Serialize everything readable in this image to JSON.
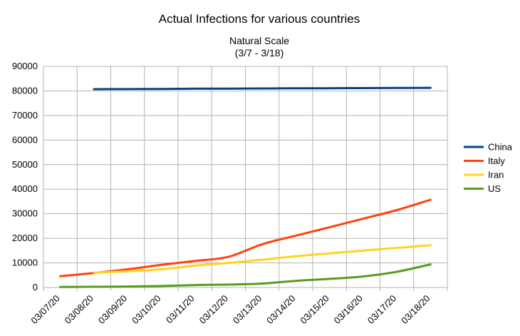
{
  "chart_data": {
    "type": "line",
    "title": "Actual Infections for various countries",
    "subtitle_line1": "Natural Scale",
    "subtitle_line2": "(3/7 - 3/18)",
    "xlabel": "",
    "ylabel": "",
    "ylim": [
      0,
      90000
    ],
    "yticks": [
      0,
      10000,
      20000,
      30000,
      40000,
      50000,
      60000,
      70000,
      80000,
      90000
    ],
    "ytick_labels": [
      "0",
      "10000",
      "20000",
      "30000",
      "40000",
      "50000",
      "60000",
      "70000",
      "80000",
      "90000"
    ],
    "categories": [
      "03/07/20",
      "03/08/20",
      "03/09/20",
      "03/10/20",
      "03/11/20",
      "03/12/20",
      "03/13/20",
      "03/14/20",
      "03/15/20",
      "03/16/20",
      "03/17/20",
      "03/18/20"
    ],
    "grid": true,
    "legend_position": "right",
    "series": [
      {
        "name": "China",
        "color": "#004586",
        "values": [
          null,
          80700,
          80750,
          80800,
          80900,
          80950,
          81000,
          81050,
          81100,
          81150,
          81200,
          81250
        ]
      },
      {
        "name": "Italy",
        "color": "#ff420e",
        "values": [
          4600,
          5900,
          7400,
          9200,
          10800,
          12500,
          17600,
          21100,
          24500,
          28000,
          31500,
          35700
        ]
      },
      {
        "name": "Iran",
        "color": "#ffd320",
        "values": [
          null,
          6000,
          6600,
          7400,
          8900,
          10000,
          11300,
          12700,
          13900,
          15000,
          16100,
          17200
        ]
      },
      {
        "name": "US",
        "color": "#579d1c",
        "values": [
          200,
          300,
          400,
          600,
          1000,
          1200,
          1600,
          2700,
          3500,
          4500,
          6400,
          9400
        ]
      }
    ]
  }
}
